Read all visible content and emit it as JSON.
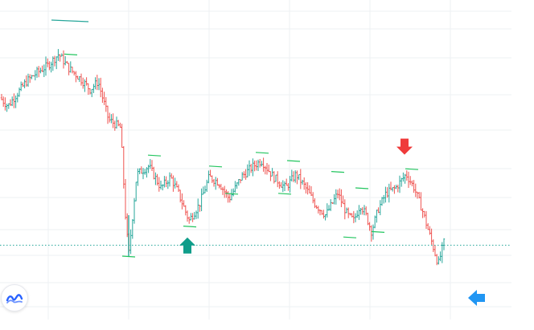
{
  "chart_data": {
    "type": "ohlc",
    "x": [],
    "ylim": [
      0,
      100
    ],
    "grid": true,
    "colors": {
      "up": "#26a69a",
      "down": "#ef5350",
      "level_line": "#26a69a",
      "swing_marks": "#22c55e",
      "up_arrow": "#0f9d8a",
      "down_arrow": "#ef3b3b",
      "nav_arrow": "#2196f3",
      "grid": "#eef0f3"
    },
    "price_path": [
      [
        0,
        73
      ],
      [
        10,
        70
      ],
      [
        20,
        74
      ],
      [
        33,
        79
      ],
      [
        45,
        82
      ],
      [
        60,
        85
      ],
      [
        73,
        89
      ],
      [
        85,
        84
      ],
      [
        100,
        80
      ],
      [
        112,
        76
      ],
      [
        122,
        79
      ],
      [
        135,
        65
      ],
      [
        150,
        62
      ],
      [
        156,
        30
      ],
      [
        160,
        15
      ],
      [
        170,
        45
      ],
      [
        185,
        48
      ],
      [
        200,
        40
      ],
      [
        212,
        44
      ],
      [
        222,
        38
      ],
      [
        235,
        28
      ],
      [
        248,
        34
      ],
      [
        260,
        44
      ],
      [
        272,
        42
      ],
      [
        285,
        36
      ],
      [
        300,
        44
      ],
      [
        315,
        48
      ],
      [
        325,
        50
      ],
      [
        340,
        44
      ],
      [
        355,
        40
      ],
      [
        368,
        45
      ],
      [
        380,
        40
      ],
      [
        392,
        34
      ],
      [
        405,
        30
      ],
      [
        420,
        38
      ],
      [
        432,
        30
      ],
      [
        440,
        28
      ],
      [
        448,
        34
      ],
      [
        455,
        30
      ],
      [
        462,
        24
      ],
      [
        470,
        32
      ],
      [
        480,
        38
      ],
      [
        492,
        40
      ],
      [
        505,
        45
      ],
      [
        515,
        40
      ],
      [
        525,
        32
      ],
      [
        535,
        22
      ],
      [
        545,
        12
      ],
      [
        552,
        20
      ]
    ],
    "level_line": 19,
    "level_line_start_x": 0,
    "swing_marks": [
      {
        "x": 88,
        "y": 89
      },
      {
        "x": 160,
        "y": 15
      },
      {
        "x": 192,
        "y": 52
      },
      {
        "x": 236,
        "y": 26
      },
      {
        "x": 268,
        "y": 48
      },
      {
        "x": 288,
        "y": 38
      },
      {
        "x": 326,
        "y": 53
      },
      {
        "x": 354,
        "y": 38
      },
      {
        "x": 365,
        "y": 50
      },
      {
        "x": 420,
        "y": 46
      },
      {
        "x": 435,
        "y": 22
      },
      {
        "x": 450,
        "y": 40
      },
      {
        "x": 470,
        "y": 24
      },
      {
        "x": 512,
        "y": 47
      }
    ],
    "markers": [
      {
        "type": "up-arrow",
        "x": 233,
        "y": 18
      },
      {
        "type": "down-arrow",
        "x": 503,
        "y": 56
      }
    ]
  },
  "nav": {
    "scroll_arrow_icon": "left-arrow-icon"
  },
  "logo": {
    "icon": "tradingview-logo-icon"
  }
}
